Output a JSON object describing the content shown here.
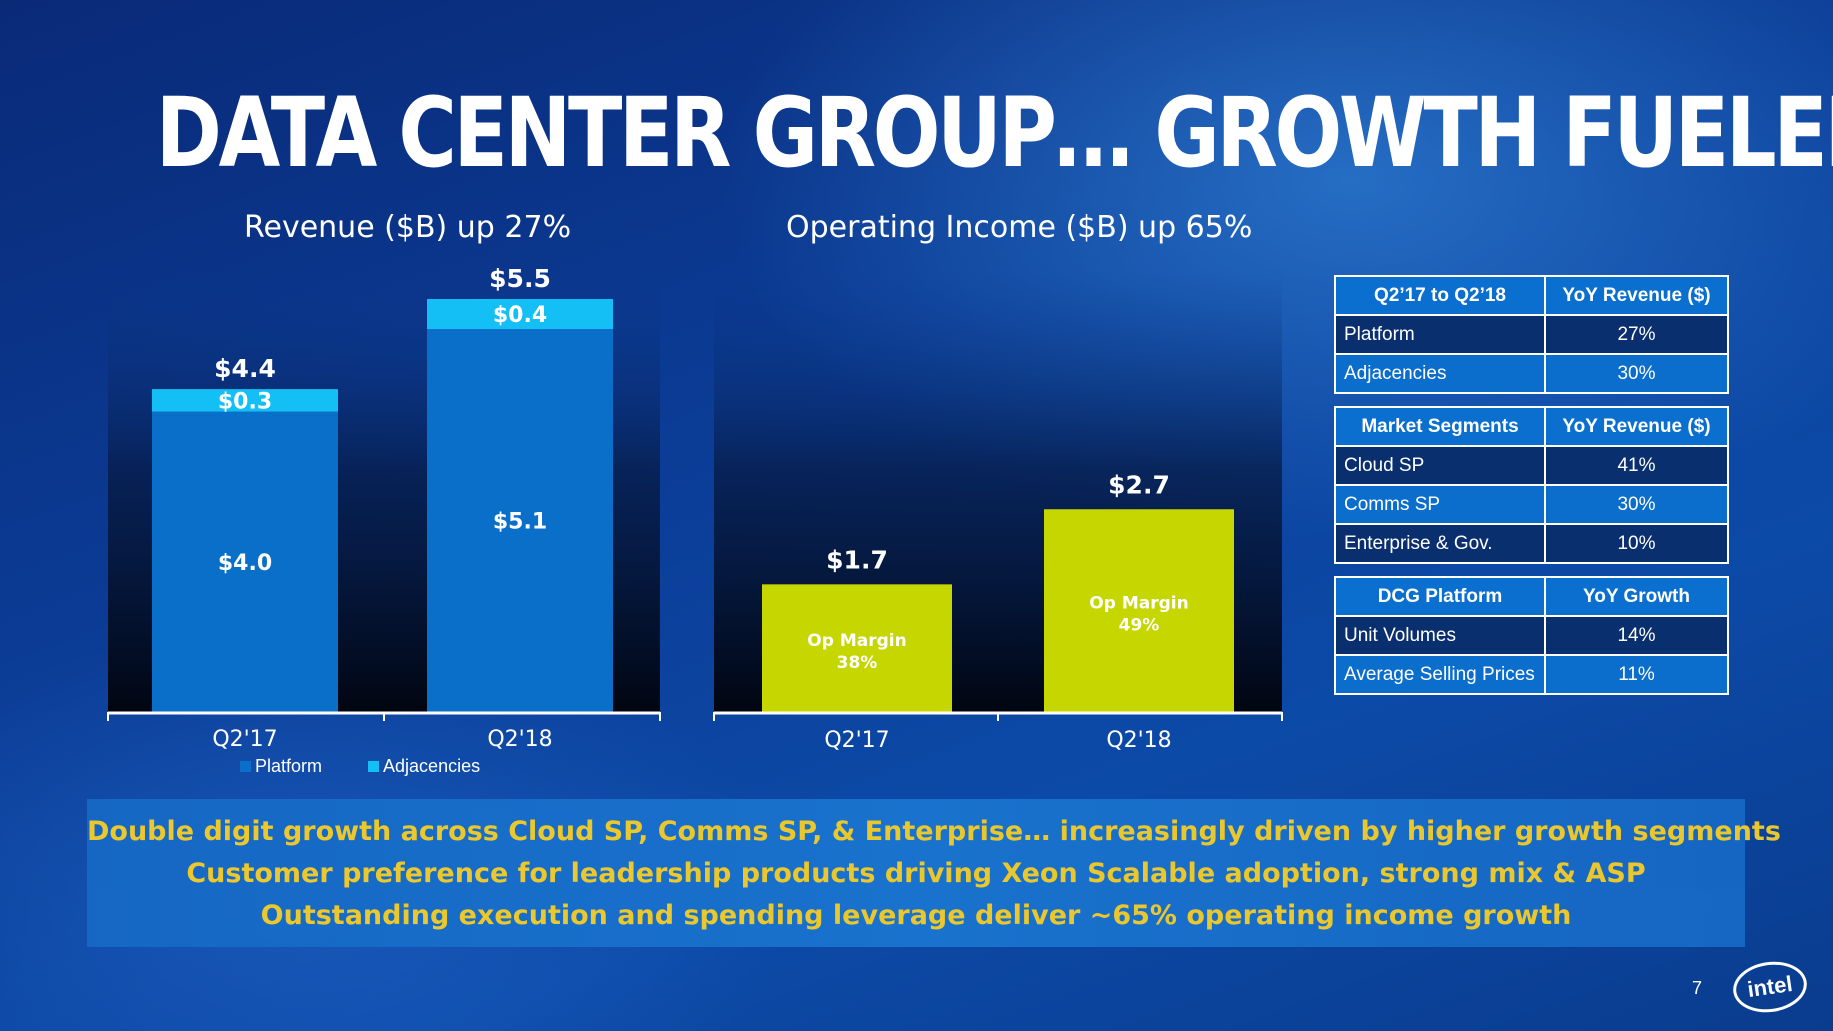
{
  "title": "DATA CENTER GROUP… GROWTH FUELED BY ALL SEGMENTS",
  "colors": {
    "platform": "#0a6fc9",
    "adjacencies": "#14bff5",
    "op_income": "#c6d600",
    "callout_text": "#f2cc2a"
  },
  "chart_data": [
    {
      "type": "bar",
      "stacked": true,
      "title": "Revenue ($B) up 27%",
      "categories": [
        "Q2'17",
        "Q2'18"
      ],
      "series": [
        {
          "name": "Platform",
          "values": [
            4.0,
            5.1
          ],
          "labels": [
            "$4.0",
            "$5.1"
          ]
        },
        {
          "name": "Adjacencies",
          "values": [
            0.3,
            0.4
          ],
          "labels": [
            "$0.3",
            "$0.4"
          ]
        }
      ],
      "totals": [
        4.4,
        5.5
      ],
      "total_labels": [
        "$4.4",
        "$5.5"
      ],
      "ylim": [
        0,
        5.5
      ],
      "legend": "bottom-center",
      "grid": false
    },
    {
      "type": "bar",
      "title": "Operating Income ($B) up 65%",
      "categories": [
        "Q2'17",
        "Q2'18"
      ],
      "values": [
        1.7,
        2.7
      ],
      "value_labels": [
        "$1.7",
        "$2.7"
      ],
      "bar_labels": [
        [
          "Op Margin",
          "38%"
        ],
        [
          "Op Margin",
          "49%"
        ]
      ],
      "ylim": [
        0,
        5.5
      ],
      "grid": false
    }
  ],
  "tables": [
    {
      "headers": [
        "Q2’17 to Q2’18",
        "YoY Revenue ($)"
      ],
      "rows": [
        [
          "Platform",
          "27%"
        ],
        [
          "Adjacencies",
          "30%"
        ]
      ]
    },
    {
      "headers": [
        "Market Segments",
        "YoY Revenue ($)"
      ],
      "rows": [
        [
          "Cloud SP",
          "41%"
        ],
        [
          "Comms SP",
          "30%"
        ],
        [
          "Enterprise & Gov.",
          "10%"
        ]
      ]
    },
    {
      "headers": [
        "DCG Platform",
        "YoY Growth"
      ],
      "rows": [
        [
          "Unit Volumes",
          "14%"
        ],
        [
          "Average Selling Prices",
          "11%"
        ]
      ]
    }
  ],
  "callout": [
    "Double digit growth across Cloud SP, Comms SP, & Enterprise… increasingly driven by higher growth segments",
    "Customer preference for leadership products driving Xeon Scalable adoption, strong mix & ASP",
    "Outstanding execution and spending leverage deliver ~65% operating income growth"
  ],
  "page_number": "7",
  "logo_text": "intel"
}
